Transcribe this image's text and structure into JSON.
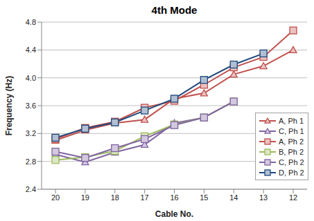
{
  "chart_data": {
    "type": "line",
    "title": "4th Mode",
    "x_label": "Cable No.",
    "y_label": "Frequency (Hz)",
    "categories": [
      "20",
      "19",
      "18",
      "17",
      "16",
      "15",
      "14",
      "13",
      "12"
    ],
    "ylim": [
      2.4,
      4.8
    ],
    "yticks": [
      2.4,
      2.8,
      3.2,
      3.6,
      {
        "value": 4,
        "label": "4.0"
      },
      4.4,
      4.8
    ],
    "grid": true,
    "legend": "lower right",
    "series": [
      {
        "name": "A, Ph 1",
        "color": "#c0504d",
        "marker": "triangle",
        "values": [
          3.1,
          3.25,
          3.35,
          3.4,
          3.7,
          3.78,
          4.05,
          4.17,
          4.4
        ]
      },
      {
        "name": "C, Ph 1",
        "color": "#8064a2",
        "marker": "triangle",
        "values": [
          2.9,
          2.79,
          2.93,
          3.04,
          3.35,
          3.43,
          3.66,
          null,
          null
        ]
      },
      {
        "name": "A, Ph 2",
        "color": "#c0504d",
        "marker": "square",
        "values": [
          3.12,
          3.28,
          3.37,
          3.57,
          3.67,
          3.9,
          4.15,
          4.3,
          4.68
        ]
      },
      {
        "name": "B, Ph 2",
        "color": "#9bbb59",
        "marker": "square",
        "values": [
          2.82,
          2.86,
          2.95,
          3.16,
          3.33,
          3.43,
          3.66,
          null,
          null
        ]
      },
      {
        "name": "C, Ph 2",
        "color": "#8064a2",
        "marker": "square",
        "values": [
          2.94,
          2.85,
          2.99,
          3.12,
          3.32,
          3.43,
          3.66,
          null,
          null
        ]
      },
      {
        "name": "D, Ph 2",
        "color": "#1f497d",
        "marker": "square",
        "values": [
          3.14,
          3.27,
          3.36,
          3.53,
          3.7,
          3.97,
          4.19,
          4.35,
          null
        ]
      }
    ]
  }
}
